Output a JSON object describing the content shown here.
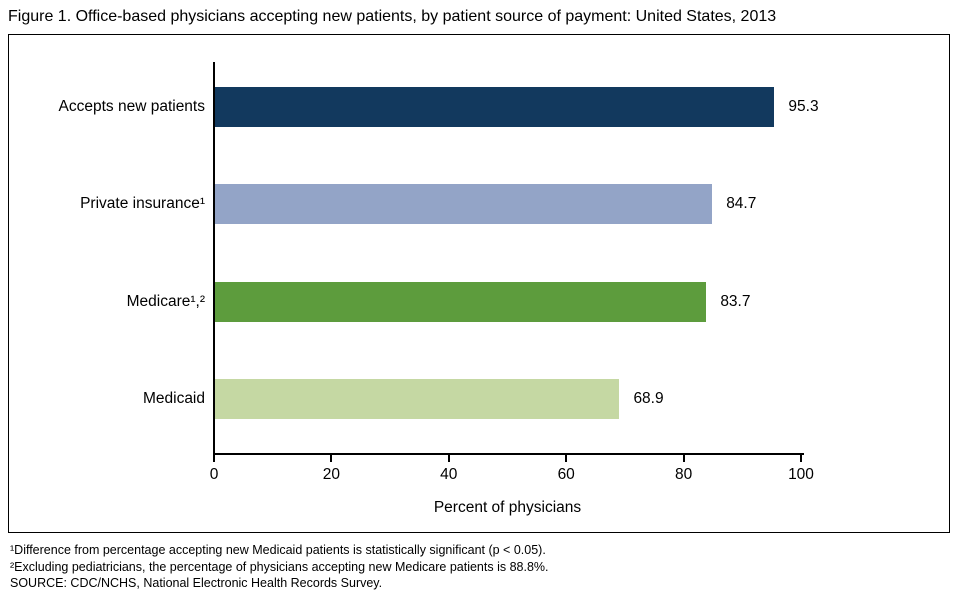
{
  "title": "Figure 1. Office-based physicians accepting new patients, by patient source of payment: United States, 2013",
  "chart_data": {
    "type": "bar",
    "orientation": "horizontal",
    "title": "Figure 1. Office-based physicians accepting new patients, by patient source of payment: United States, 2013",
    "categories": [
      "Accepts new patients",
      "Private insurance¹",
      "Medicare¹,²",
      "Medicaid"
    ],
    "values": [
      95.3,
      84.7,
      83.7,
      68.9
    ],
    "value_labels": [
      "95.3",
      "84.7",
      "83.7",
      "68.9"
    ],
    "bar_colors": [
      "#12395e",
      "#93a4c7",
      "#5d9c3d",
      "#c5d8a3"
    ],
    "xlabel": "Percent of physicians",
    "ylabel": "",
    "xlim": [
      0,
      100
    ],
    "xticks": [
      0,
      20,
      40,
      60,
      80,
      100
    ],
    "grid": false,
    "legend": false
  },
  "footnotes": {
    "line1": "¹Difference from percentage accepting new Medicaid patients is statistically significant (p < 0.05).",
    "line2": "²Excluding pediatricians, the percentage of physicians accepting new Medicare patients is 88.8%.",
    "line3": "SOURCE: CDC/NCHS, National Electronic Health Records Survey."
  }
}
